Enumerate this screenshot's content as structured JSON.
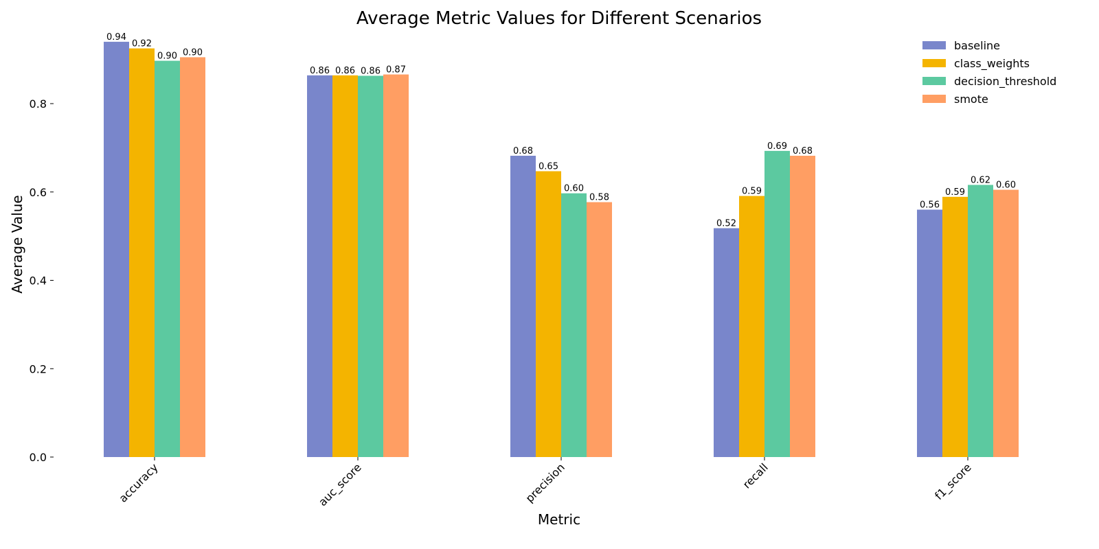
{
  "chart_data": {
    "type": "bar",
    "title": "Average Metric Values for Different Scenarios",
    "xlabel": "Metric",
    "ylabel": "Average Value",
    "categories": [
      "accuracy",
      "auc_score",
      "precision",
      "recall",
      "f1_score"
    ],
    "series": [
      {
        "name": "baseline",
        "color": "#7986CB",
        "values": [
          0.94,
          0.864,
          0.682,
          0.518,
          0.56
        ],
        "labels": [
          "0.94",
          "0.86",
          "0.68",
          "0.52",
          "0.56"
        ]
      },
      {
        "name": "class_weights",
        "color": "#F4B400",
        "values": [
          0.925,
          0.864,
          0.647,
          0.591,
          0.589
        ],
        "labels": [
          "0.92",
          "0.86",
          "0.65",
          "0.59",
          "0.59"
        ]
      },
      {
        "name": "decision_threshold",
        "color": "#5CC9A0",
        "values": [
          0.897,
          0.863,
          0.597,
          0.693,
          0.616
        ],
        "labels": [
          "0.90",
          "0.86",
          "0.60",
          "0.69",
          "0.62"
        ]
      },
      {
        "name": "smote",
        "color": "#FF9E63",
        "values": [
          0.905,
          0.866,
          0.577,
          0.682,
          0.605
        ],
        "labels": [
          "0.90",
          "0.87",
          "0.58",
          "0.68",
          "0.60"
        ]
      }
    ],
    "ylim": [
      0,
      0.96
    ],
    "yticks": [
      0.0,
      0.2,
      0.4,
      0.6,
      0.8
    ],
    "ytick_labels": [
      "0.0",
      "0.2",
      "0.4",
      "0.6",
      "0.8"
    ],
    "grid": false,
    "legend_position": "top-right"
  }
}
